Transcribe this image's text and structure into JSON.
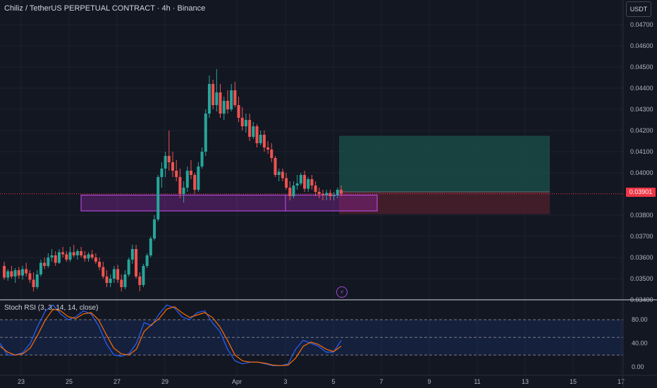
{
  "header": {
    "symbol_title": "Chiliz / TetherUS PERPETUAL CONTRACT · 4h · Binance",
    "currency_button": "USDT"
  },
  "price_tag": "0.03901",
  "indicator_title": "Stoch RSI (3, 3, 14, 14, close)",
  "colors": {
    "background": "#131722",
    "up": "#26a69a",
    "down": "#ef5350",
    "zone_fill": "#9c27b0",
    "zone_border": "#c850f0",
    "target_fill": "#1a4a44",
    "stop_fill": "#4a1f2a",
    "k_line": "#2962ff",
    "d_line": "#ff6d00",
    "price_line": "#f23645"
  },
  "chart_data": [
    {
      "type": "candlestick",
      "title": "Chiliz / TetherUS PERPETUAL CONTRACT · 4h · Binance",
      "y_ticks": [
        "0.04700",
        "0.04600",
        "0.04500",
        "0.04400",
        "0.04300",
        "0.04200",
        "0.04100",
        "0.04000",
        "0.03800",
        "0.03700",
        "0.03600",
        "0.03500",
        "0.03400"
      ],
      "x_ticks": [
        "23",
        "25",
        "27",
        "29",
        "Apr",
        "3",
        "5",
        "7",
        "9",
        "11",
        "13",
        "15",
        "17"
      ],
      "ylim": [
        0.034,
        0.0482
      ],
      "last_price": 0.03901,
      "candles": [
        [
          0.0356,
          0.0358,
          0.03495,
          0.03505
        ],
        [
          0.03505,
          0.03545,
          0.0349,
          0.03535
        ],
        [
          0.03535,
          0.0356,
          0.035,
          0.0351
        ],
        [
          0.0351,
          0.0355,
          0.0348,
          0.0354
        ],
        [
          0.0354,
          0.03555,
          0.035,
          0.03515
        ],
        [
          0.03515,
          0.0356,
          0.03495,
          0.03545
        ],
        [
          0.03545,
          0.03575,
          0.0351,
          0.03525
        ],
        [
          0.03525,
          0.0354,
          0.0348,
          0.03495
        ],
        [
          0.03495,
          0.0353,
          0.0344,
          0.0346
        ],
        [
          0.0346,
          0.0354,
          0.0345,
          0.0352
        ],
        [
          0.0352,
          0.0359,
          0.0351,
          0.03575
        ],
        [
          0.03575,
          0.036,
          0.03545,
          0.0356
        ],
        [
          0.0356,
          0.0362,
          0.0355,
          0.036
        ],
        [
          0.036,
          0.0364,
          0.0358,
          0.0361
        ],
        [
          0.0361,
          0.0363,
          0.0356,
          0.03575
        ],
        [
          0.03575,
          0.0364,
          0.0357,
          0.03625
        ],
        [
          0.03625,
          0.0365,
          0.036,
          0.03615
        ],
        [
          0.03615,
          0.0363,
          0.0358,
          0.0359
        ],
        [
          0.0359,
          0.0365,
          0.0358,
          0.03625
        ],
        [
          0.03625,
          0.0366,
          0.036,
          0.0361
        ],
        [
          0.0361,
          0.0364,
          0.0359,
          0.0363
        ],
        [
          0.0363,
          0.0365,
          0.036,
          0.0361
        ],
        [
          0.0361,
          0.0363,
          0.0358,
          0.03595
        ],
        [
          0.03595,
          0.03625,
          0.0358,
          0.03615
        ],
        [
          0.03615,
          0.03635,
          0.0359,
          0.036
        ],
        [
          0.036,
          0.0362,
          0.0357,
          0.0358
        ],
        [
          0.0358,
          0.036,
          0.0354,
          0.03555
        ],
        [
          0.03555,
          0.0358,
          0.035,
          0.0351
        ],
        [
          0.0351,
          0.0354,
          0.0346,
          0.0348
        ],
        [
          0.0348,
          0.0352,
          0.0346,
          0.035
        ],
        [
          0.035,
          0.0356,
          0.0348,
          0.03545
        ],
        [
          0.03545,
          0.03565,
          0.0348,
          0.03495
        ],
        [
          0.03495,
          0.0352,
          0.0344,
          0.0346
        ],
        [
          0.0346,
          0.0354,
          0.0345,
          0.0352
        ],
        [
          0.0352,
          0.036,
          0.0351,
          0.0359
        ],
        [
          0.0359,
          0.0366,
          0.0357,
          0.0364
        ],
        [
          0.0364,
          0.0366,
          0.035,
          0.0351
        ],
        [
          0.0351,
          0.0353,
          0.0344,
          0.0347
        ],
        [
          0.0347,
          0.0357,
          0.0346,
          0.0356
        ],
        [
          0.0356,
          0.0362,
          0.0355,
          0.0361
        ],
        [
          0.0361,
          0.037,
          0.036,
          0.0369
        ],
        [
          0.0369,
          0.038,
          0.0368,
          0.0378
        ],
        [
          0.0378,
          0.0399,
          0.0377,
          0.0398
        ],
        [
          0.0398,
          0.0405,
          0.0393,
          0.0402
        ],
        [
          0.0402,
          0.041,
          0.0398,
          0.0408
        ],
        [
          0.0408,
          0.042,
          0.0401,
          0.0405
        ],
        [
          0.0405,
          0.041,
          0.0398,
          0.0401
        ],
        [
          0.0401,
          0.0406,
          0.0396,
          0.0398
        ],
        [
          0.0398,
          0.0402,
          0.0388,
          0.039
        ],
        [
          0.039,
          0.0396,
          0.0386,
          0.0393
        ],
        [
          0.0393,
          0.0403,
          0.0391,
          0.0401
        ],
        [
          0.0401,
          0.0406,
          0.0397,
          0.0399
        ],
        [
          0.0399,
          0.04,
          0.039,
          0.0392
        ],
        [
          0.0392,
          0.0405,
          0.0391,
          0.0403
        ],
        [
          0.0403,
          0.0412,
          0.0402,
          0.041
        ],
        [
          0.041,
          0.043,
          0.0408,
          0.0428
        ],
        [
          0.0428,
          0.0446,
          0.0426,
          0.0442
        ],
        [
          0.0442,
          0.0444,
          0.043,
          0.0432
        ],
        [
          0.0432,
          0.0449,
          0.0429,
          0.0438
        ],
        [
          0.0438,
          0.0442,
          0.0426,
          0.0428
        ],
        [
          0.0428,
          0.0436,
          0.0425,
          0.0434
        ],
        [
          0.0434,
          0.0439,
          0.0428,
          0.043
        ],
        [
          0.043,
          0.0442,
          0.0429,
          0.0439
        ],
        [
          0.0439,
          0.0443,
          0.0431,
          0.0432
        ],
        [
          0.0432,
          0.0436,
          0.0424,
          0.0426
        ],
        [
          0.0426,
          0.0431,
          0.042,
          0.0422
        ],
        [
          0.0422,
          0.0428,
          0.0419,
          0.0425
        ],
        [
          0.0425,
          0.0428,
          0.0415,
          0.0417
        ],
        [
          0.0417,
          0.0424,
          0.0416,
          0.0422
        ],
        [
          0.0422,
          0.0423,
          0.0412,
          0.0414
        ],
        [
          0.0414,
          0.042,
          0.0413,
          0.0418
        ],
        [
          0.0418,
          0.042,
          0.041,
          0.0412
        ],
        [
          0.0412,
          0.0415,
          0.0409,
          0.0411
        ],
        [
          0.0411,
          0.0414,
          0.0405,
          0.0407
        ],
        [
          0.0407,
          0.0408,
          0.0398,
          0.0399
        ],
        [
          0.0399,
          0.0402,
          0.0396,
          0.04005
        ],
        [
          0.04005,
          0.0402,
          0.0396,
          0.03975
        ],
        [
          0.03975,
          0.04,
          0.0392,
          0.0393
        ],
        [
          0.0393,
          0.0396,
          0.0387,
          0.0389
        ],
        [
          0.0389,
          0.0396,
          0.0388,
          0.0394
        ],
        [
          0.0394,
          0.0399,
          0.0392,
          0.0395
        ],
        [
          0.0395,
          0.04,
          0.0394,
          0.0399
        ],
        [
          0.0399,
          0.0401,
          0.0391,
          0.03925
        ],
        [
          0.03925,
          0.0398,
          0.0391,
          0.0397
        ],
        [
          0.0397,
          0.0399,
          0.0392,
          0.0394
        ],
        [
          0.0394,
          0.0396,
          0.0389,
          0.0391
        ],
        [
          0.0391,
          0.0393,
          0.0388,
          0.039
        ],
        [
          0.039,
          0.0392,
          0.0387,
          0.03895
        ],
        [
          0.03895,
          0.0392,
          0.0387,
          0.03905
        ],
        [
          0.03905,
          0.0392,
          0.0387,
          0.0389
        ],
        [
          0.0389,
          0.0391,
          0.0387,
          0.03895
        ],
        [
          0.03895,
          0.0393,
          0.0388,
          0.0392
        ],
        [
          0.0392,
          0.0394,
          0.0389,
          0.03901
        ]
      ],
      "support_zone": {
        "top": 0.03895,
        "bottom": 0.0382
      },
      "position": {
        "target": 0.04175,
        "entry": 0.0391,
        "stop": 0.03805
      }
    },
    {
      "type": "line",
      "title": "Stoch RSI (3, 3, 14, 14, close)",
      "y_ticks": [
        "80.00",
        "40.00",
        "0.00"
      ],
      "ylim": [
        -10,
        110
      ],
      "bands": [
        80,
        50,
        20
      ],
      "series": [
        {
          "values": [
            40,
            20,
            20,
            24,
            40,
            70,
            95,
            105,
            90,
            80,
            85,
            95,
            90,
            70,
            40,
            20,
            18,
            22,
            40,
            75,
            70,
            90,
            105,
            100,
            85,
            80,
            92,
            95,
            75,
            60,
            30,
            10,
            5,
            8,
            8,
            5,
            2,
            2,
            5,
            30,
            45,
            40,
            35,
            25,
            25,
            45
          ]
        },
        {
          "values": [
            35,
            25,
            20,
            22,
            32,
            55,
            80,
            98,
            95,
            85,
            82,
            90,
            92,
            80,
            55,
            32,
            22,
            20,
            30,
            60,
            72,
            82,
            98,
            102,
            92,
            84,
            88,
            92,
            84,
            68,
            45,
            20,
            10,
            8,
            8,
            6,
            3,
            2,
            3,
            15,
            35,
            42,
            38,
            30,
            26,
            35
          ]
        }
      ]
    }
  ]
}
